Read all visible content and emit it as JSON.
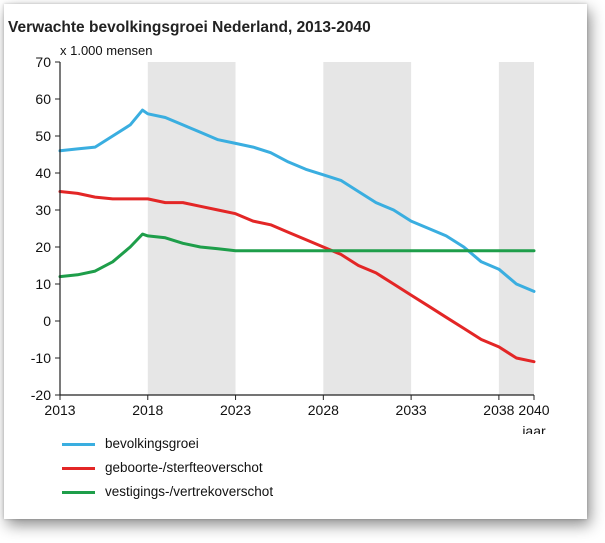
{
  "chart_data": {
    "type": "line",
    "title": "Verwachte bevolkingsgroei Nederland, 2013-2040",
    "ylabel": "x 1.000 mensen",
    "xlabel": "jaar",
    "xlim": [
      2013,
      2040
    ],
    "ylim": [
      -20,
      70
    ],
    "x_ticks": [
      2013,
      2018,
      2023,
      2028,
      2033,
      2038,
      2040
    ],
    "y_ticks": [
      70,
      60,
      50,
      40,
      30,
      20,
      10,
      0,
      -10,
      -20
    ],
    "shaded_bands": [
      [
        2018,
        2023
      ],
      [
        2028,
        2033
      ],
      [
        2038,
        2040
      ]
    ],
    "shade_color": "#e6e6e6",
    "legend_position": "bottom",
    "series": [
      {
        "name": "bevolkingsgroei",
        "color": "#3aaee0",
        "x": [
          2013,
          2014,
          2015,
          2016,
          2017,
          2017.7,
          2018,
          2019,
          2020,
          2021,
          2022,
          2023,
          2024,
          2025,
          2026,
          2027,
          2028,
          2029,
          2030,
          2031,
          2032,
          2033,
          2034,
          2035,
          2036,
          2037,
          2038,
          2039,
          2040
        ],
        "values": [
          46,
          46.5,
          47,
          50,
          53,
          57,
          56,
          55,
          53,
          51,
          49,
          48,
          47,
          45.5,
          43,
          41,
          39.5,
          38,
          35,
          32,
          30,
          27,
          25,
          23,
          20,
          16,
          14,
          10,
          8
        ]
      },
      {
        "name": "geboorte-/sterfteoverschot",
        "color": "#e32626",
        "x": [
          2013,
          2014,
          2015,
          2016,
          2017,
          2018,
          2019,
          2020,
          2021,
          2022,
          2023,
          2024,
          2025,
          2026,
          2027,
          2028,
          2029,
          2030,
          2031,
          2032,
          2033,
          2034,
          2035,
          2036,
          2037,
          2038,
          2039,
          2040
        ],
        "values": [
          35,
          34.5,
          33.5,
          33,
          33,
          33,
          32,
          32,
          31,
          30,
          29,
          27,
          26,
          24,
          22,
          20,
          18,
          15,
          13,
          10,
          7,
          4,
          1,
          -2,
          -5,
          -7,
          -10,
          -11
        ]
      },
      {
        "name": "vestigings-/vertrekoverschot",
        "color": "#1e9e4a",
        "x": [
          2013,
          2014,
          2015,
          2016,
          2017,
          2017.7,
          2018,
          2019,
          2020,
          2021,
          2022,
          2023,
          2024,
          2025,
          2026,
          2027,
          2028,
          2029,
          2030,
          2031,
          2032,
          2033,
          2034,
          2035,
          2036,
          2037,
          2038,
          2039,
          2040
        ],
        "values": [
          12,
          12.5,
          13.5,
          16,
          20,
          23.5,
          23,
          22.5,
          21,
          20,
          19.5,
          19,
          19,
          19,
          19,
          19,
          19,
          19,
          19,
          19,
          19,
          19,
          19,
          19,
          19,
          19,
          19,
          19,
          19
        ]
      }
    ]
  }
}
